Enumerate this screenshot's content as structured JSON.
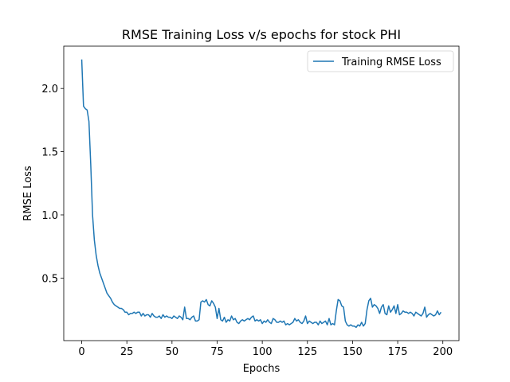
{
  "chart_data": {
    "type": "line",
    "title": "RMSE Training Loss v/s epochs for stock PHI",
    "xlabel": "Epochs",
    "ylabel": "RMSE Loss",
    "x": [
      0,
      1,
      2,
      3,
      4,
      5,
      6,
      7,
      8,
      9,
      10,
      11,
      12,
      13,
      14,
      15,
      16,
      17,
      18,
      19,
      20,
      21,
      22,
      23,
      24,
      25,
      26,
      27,
      28,
      29,
      30,
      31,
      32,
      33,
      34,
      35,
      36,
      37,
      38,
      39,
      40,
      41,
      42,
      43,
      44,
      45,
      46,
      47,
      48,
      49,
      50,
      51,
      52,
      53,
      54,
      55,
      56,
      57,
      58,
      59,
      60,
      61,
      62,
      63,
      64,
      65,
      66,
      67,
      68,
      69,
      70,
      71,
      72,
      73,
      74,
      75,
      76,
      77,
      78,
      79,
      80,
      81,
      82,
      83,
      84,
      85,
      86,
      87,
      88,
      89,
      90,
      91,
      92,
      93,
      94,
      95,
      96,
      97,
      98,
      99,
      100,
      101,
      102,
      103,
      104,
      105,
      106,
      107,
      108,
      109,
      110,
      111,
      112,
      113,
      114,
      115,
      116,
      117,
      118,
      119,
      120,
      121,
      122,
      123,
      124,
      125,
      126,
      127,
      128,
      129,
      130,
      131,
      132,
      133,
      134,
      135,
      136,
      137,
      138,
      139,
      140,
      141,
      142,
      143,
      144,
      145,
      146,
      147,
      148,
      149,
      150,
      151,
      152,
      153,
      154,
      155,
      156,
      157,
      158,
      159,
      160,
      161,
      162,
      163,
      164,
      165,
      166,
      167,
      168,
      169,
      170,
      171,
      172,
      173,
      174,
      175,
      176,
      177,
      178,
      179,
      180,
      181,
      182,
      183,
      184,
      185,
      186,
      187,
      188,
      189,
      190,
      191,
      192,
      193,
      194,
      195,
      196,
      197,
      198,
      199
    ],
    "series": [
      {
        "name": "Training RMSE Loss",
        "color": "#1f77b4",
        "values": [
          2.23,
          1.86,
          1.84,
          1.83,
          1.74,
          1.4,
          1.0,
          0.8,
          0.68,
          0.6,
          0.54,
          0.5,
          0.46,
          0.42,
          0.38,
          0.36,
          0.34,
          0.31,
          0.29,
          0.28,
          0.27,
          0.26,
          0.26,
          0.25,
          0.23,
          0.23,
          0.21,
          0.22,
          0.22,
          0.23,
          0.22,
          0.23,
          0.23,
          0.2,
          0.22,
          0.2,
          0.21,
          0.21,
          0.19,
          0.22,
          0.2,
          0.19,
          0.19,
          0.2,
          0.18,
          0.21,
          0.19,
          0.2,
          0.19,
          0.19,
          0.18,
          0.2,
          0.19,
          0.18,
          0.2,
          0.19,
          0.17,
          0.27,
          0.18,
          0.18,
          0.17,
          0.19,
          0.2,
          0.16,
          0.16,
          0.17,
          0.31,
          0.32,
          0.31,
          0.33,
          0.29,
          0.28,
          0.32,
          0.3,
          0.27,
          0.18,
          0.26,
          0.17,
          0.16,
          0.19,
          0.15,
          0.17,
          0.16,
          0.2,
          0.17,
          0.18,
          0.15,
          0.14,
          0.16,
          0.17,
          0.16,
          0.17,
          0.18,
          0.17,
          0.19,
          0.2,
          0.16,
          0.17,
          0.16,
          0.17,
          0.14,
          0.16,
          0.15,
          0.17,
          0.15,
          0.14,
          0.18,
          0.17,
          0.15,
          0.15,
          0.16,
          0.15,
          0.16,
          0.13,
          0.14,
          0.13,
          0.14,
          0.15,
          0.18,
          0.16,
          0.17,
          0.15,
          0.14,
          0.16,
          0.2,
          0.14,
          0.16,
          0.15,
          0.14,
          0.15,
          0.15,
          0.13,
          0.16,
          0.14,
          0.15,
          0.16,
          0.13,
          0.18,
          0.13,
          0.14,
          0.13,
          0.24,
          0.33,
          0.32,
          0.28,
          0.27,
          0.16,
          0.13,
          0.12,
          0.13,
          0.12,
          0.12,
          0.11,
          0.13,
          0.12,
          0.15,
          0.12,
          0.14,
          0.25,
          0.32,
          0.34,
          0.27,
          0.29,
          0.28,
          0.26,
          0.22,
          0.27,
          0.29,
          0.22,
          0.21,
          0.28,
          0.23,
          0.25,
          0.28,
          0.22,
          0.29,
          0.21,
          0.22,
          0.24,
          0.23,
          0.23,
          0.22,
          0.23,
          0.22,
          0.2,
          0.23,
          0.22,
          0.21,
          0.2,
          0.22,
          0.27,
          0.19,
          0.21,
          0.22,
          0.21,
          0.2,
          0.21,
          0.24,
          0.21,
          0.23
        ]
      }
    ],
    "xlim": [
      -9.95,
      208.95
    ],
    "xticks": [
      0,
      25,
      50,
      75,
      100,
      125,
      150,
      175,
      200
    ],
    "ylim": [
      0.005,
      2.335
    ],
    "yticks": [
      0.5,
      {
        "value": 1,
        "label": "1.0"
      },
      1.5,
      {
        "value": 2,
        "label": "2.0"
      }
    ],
    "legend": "upper right"
  }
}
